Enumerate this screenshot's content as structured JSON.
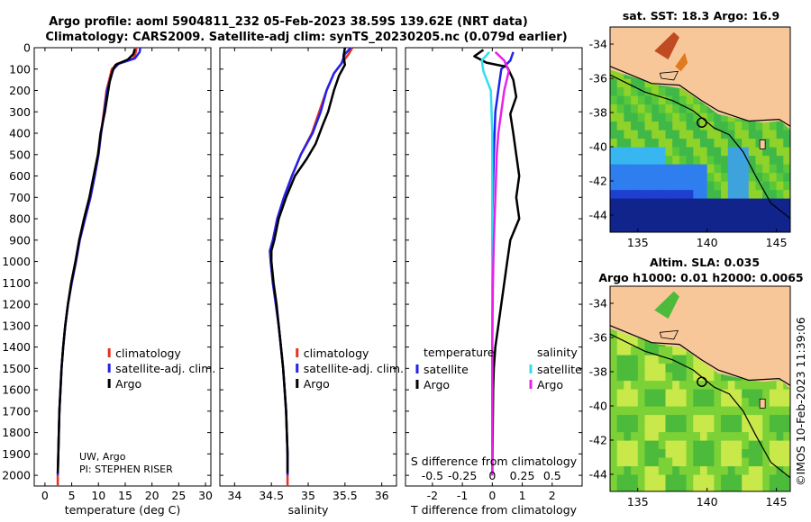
{
  "titles": {
    "line1": "Argo profile: aoml 5904811_232 05-Feb-2023 38.59S 139.62E (NRT data)",
    "line2": "Climatology: CARS2009. Satellite-adj clim: synTS_20230205.nc (0.079d earlier)"
  },
  "credit": {
    "line1": "UW, Argo",
    "line2": "PI: STEPHEN RISER"
  },
  "watermark": "©IMOS 10-Feb-2023 11:39:06",
  "colors": {
    "climatology": "#e8301e",
    "satellite_adj": "#2222ee",
    "argo": "#000000",
    "temp_argo": "#000000",
    "temp_satellite": "#33ddee",
    "sal_satellite": "#e822e8",
    "land": "#f7c79a",
    "ocean_mid": "#58c83a",
    "ocean_cold": "#1a3fd6",
    "ocean_warm": "#c04a22"
  },
  "chart_data": [
    {
      "type": "line",
      "id": "temperature-panel",
      "xlabel": "temperature (deg C)",
      "xlim": [
        -2,
        31
      ],
      "xticks": [
        0,
        5,
        10,
        15,
        20,
        25,
        30
      ],
      "ylim": [
        0,
        2050
      ],
      "yticks": [
        0,
        100,
        200,
        300,
        400,
        500,
        600,
        700,
        800,
        900,
        1000,
        1100,
        1200,
        1300,
        1400,
        1500,
        1600,
        1700,
        1800,
        1900,
        2000
      ],
      "ydirection": "down",
      "legend": [
        "climatology",
        "satellite-adj. clim.",
        "Argo"
      ],
      "legend_location": "lower-right",
      "series": [
        {
          "name": "climatology",
          "color": "#e8301e",
          "points": [
            [
              17.1,
              0
            ],
            [
              17,
              20
            ],
            [
              16.5,
              50
            ],
            [
              13.5,
              75
            ],
            [
              12.5,
              100
            ],
            [
              12,
              150
            ],
            [
              11.5,
              200
            ],
            [
              11,
              300
            ],
            [
              10.5,
              400
            ],
            [
              10,
              500
            ],
            [
              9.3,
              600
            ],
            [
              8.5,
              700
            ],
            [
              7.5,
              800
            ],
            [
              6.5,
              900
            ],
            [
              5.8,
              1000
            ],
            [
              5,
              1100
            ],
            [
              4.3,
              1200
            ],
            [
              3.8,
              1300
            ],
            [
              3.4,
              1400
            ],
            [
              3.1,
              1500
            ],
            [
              2.9,
              1600
            ],
            [
              2.7,
              1700
            ],
            [
              2.6,
              1800
            ],
            [
              2.5,
              1900
            ],
            [
              2.4,
              2000
            ],
            [
              2.4,
              2050
            ]
          ]
        },
        {
          "name": "satellite-adj. clim.",
          "color": "#2222ee",
          "points": [
            [
              17.8,
              0
            ],
            [
              17.7,
              20
            ],
            [
              16.8,
              50
            ],
            [
              13.8,
              75
            ],
            [
              12.8,
              100
            ],
            [
              12.2,
              150
            ],
            [
              11.6,
              200
            ],
            [
              11.1,
              300
            ],
            [
              10.5,
              400
            ],
            [
              10,
              500
            ],
            [
              9.3,
              600
            ],
            [
              8.5,
              700
            ],
            [
              7.5,
              800
            ],
            [
              6.5,
              900
            ],
            [
              5.8,
              1000
            ],
            [
              5,
              1100
            ],
            [
              4.3,
              1200
            ],
            [
              3.8,
              1300
            ],
            [
              3.4,
              1400
            ],
            [
              3.1,
              1500
            ],
            [
              2.9,
              1600
            ],
            [
              2.7,
              1700
            ],
            [
              2.6,
              1800
            ],
            [
              2.5,
              1900
            ],
            [
              2.4,
              2000
            ]
          ]
        },
        {
          "name": "Argo",
          "color": "#000000",
          "points": [
            [
              16.8,
              5
            ],
            [
              16.5,
              30
            ],
            [
              15.5,
              55
            ],
            [
              13.2,
              80
            ],
            [
              12.6,
              110
            ],
            [
              12.1,
              160
            ],
            [
              11.7,
              220
            ],
            [
              11.2,
              300
            ],
            [
              10.4,
              400
            ],
            [
              9.9,
              500
            ],
            [
              9.1,
              600
            ],
            [
              8.3,
              700
            ],
            [
              7.3,
              800
            ],
            [
              6.4,
              900
            ],
            [
              5.7,
              1000
            ],
            [
              4.9,
              1100
            ],
            [
              4.3,
              1200
            ],
            [
              3.8,
              1300
            ],
            [
              3.4,
              1400
            ],
            [
              3.1,
              1500
            ],
            [
              2.9,
              1600
            ],
            [
              2.7,
              1700
            ],
            [
              2.6,
              1800
            ],
            [
              2.5,
              1900
            ],
            [
              2.4,
              1990
            ]
          ]
        }
      ]
    },
    {
      "type": "line",
      "id": "salinity-panel",
      "xlabel": "salinity",
      "xlim": [
        33.8,
        36.2
      ],
      "xticks": [
        34,
        34.5,
        35,
        35.5,
        36
      ],
      "ylim": [
        0,
        2050
      ],
      "ydirection": "down",
      "legend": [
        "climatology",
        "satellite-adj. clim.",
        "Argo"
      ],
      "legend_location": "lower-right",
      "series": [
        {
          "name": "climatology",
          "color": "#e8301e",
          "points": [
            [
              35.6,
              0
            ],
            [
              35.55,
              30
            ],
            [
              35.45,
              75
            ],
            [
              35.35,
              120
            ],
            [
              35.25,
              200
            ],
            [
              35.15,
              300
            ],
            [
              35.05,
              400
            ],
            [
              34.9,
              500
            ],
            [
              34.78,
              600
            ],
            [
              34.67,
              700
            ],
            [
              34.58,
              800
            ],
            [
              34.52,
              900
            ],
            [
              34.48,
              950
            ],
            [
              34.49,
              1000
            ],
            [
              34.52,
              1100
            ],
            [
              34.56,
              1200
            ],
            [
              34.6,
              1300
            ],
            [
              34.63,
              1400
            ],
            [
              34.66,
              1500
            ],
            [
              34.68,
              1600
            ],
            [
              34.7,
              1700
            ],
            [
              34.71,
              1800
            ],
            [
              34.72,
              1900
            ],
            [
              34.72,
              2000
            ],
            [
              34.72,
              2050
            ]
          ]
        },
        {
          "name": "satellite-adj. clim.",
          "color": "#2222ee",
          "points": [
            [
              35.58,
              0
            ],
            [
              35.5,
              30
            ],
            [
              35.45,
              75
            ],
            [
              35.35,
              120
            ],
            [
              35.25,
              200
            ],
            [
              35.17,
              300
            ],
            [
              35.06,
              400
            ],
            [
              34.9,
              500
            ],
            [
              34.78,
              600
            ],
            [
              34.67,
              700
            ],
            [
              34.58,
              800
            ],
            [
              34.52,
              900
            ],
            [
              34.48,
              950
            ],
            [
              34.49,
              1000
            ],
            [
              34.52,
              1100
            ],
            [
              34.56,
              1200
            ],
            [
              34.6,
              1300
            ],
            [
              34.63,
              1400
            ],
            [
              34.66,
              1500
            ],
            [
              34.68,
              1600
            ],
            [
              34.7,
              1700
            ],
            [
              34.71,
              1800
            ],
            [
              34.72,
              1900
            ],
            [
              34.72,
              2000
            ]
          ]
        },
        {
          "name": "Argo",
          "color": "#000000",
          "points": [
            [
              35.5,
              0
            ],
            [
              35.48,
              40
            ],
            [
              35.5,
              80
            ],
            [
              35.42,
              130
            ],
            [
              35.35,
              200
            ],
            [
              35.27,
              300
            ],
            [
              35.2,
              360
            ],
            [
              35.1,
              450
            ],
            [
              34.98,
              520
            ],
            [
              34.82,
              600
            ],
            [
              34.7,
              700
            ],
            [
              34.6,
              800
            ],
            [
              34.54,
              900
            ],
            [
              34.5,
              950
            ],
            [
              34.5,
              1000
            ],
            [
              34.53,
              1100
            ],
            [
              34.57,
              1200
            ],
            [
              34.6,
              1300
            ],
            [
              34.63,
              1400
            ],
            [
              34.66,
              1500
            ],
            [
              34.68,
              1600
            ],
            [
              34.7,
              1700
            ],
            [
              34.71,
              1800
            ],
            [
              34.72,
              1900
            ],
            [
              34.72,
              1990
            ]
          ]
        }
      ]
    },
    {
      "type": "line",
      "id": "difference-panel",
      "xlabel": "T difference from climatology",
      "xlabel_top": "S difference from climatology",
      "xlim": [
        -2.9,
        3.0
      ],
      "xticks": [
        -2,
        -1,
        0,
        1,
        2
      ],
      "x2ticks": [
        -0.5,
        -0.25,
        0,
        0.25,
        0.5
      ],
      "ylim": [
        0,
        2050
      ],
      "ydirection": "down",
      "legend_temperature_title": "temperature",
      "legend_salinity_title": "salinity",
      "legend_temperature": [
        "satellite",
        "Argo"
      ],
      "legend_salinity": [
        "satellite",
        "Argo"
      ],
      "series": [
        {
          "name": "temperature satellite",
          "color": "#2222ee",
          "points": [
            [
              0.7,
              20
            ],
            [
              0.6,
              60
            ],
            [
              0.3,
              100
            ],
            [
              0.2,
              200
            ],
            [
              0.1,
              300
            ],
            [
              0.05,
              500
            ],
            [
              0,
              800
            ],
            [
              0,
              1200
            ],
            [
              0,
              2000
            ]
          ]
        },
        {
          "name": "temperature Argo",
          "color": "#000000",
          "points": [
            [
              -0.3,
              10
            ],
            [
              -0.6,
              40
            ],
            [
              -0.2,
              70
            ],
            [
              0.5,
              90
            ],
            [
              0.7,
              150
            ],
            [
              0.8,
              230
            ],
            [
              0.6,
              310
            ],
            [
              0.7,
              400
            ],
            [
              0.8,
              500
            ],
            [
              0.9,
              600
            ],
            [
              0.8,
              700
            ],
            [
              0.9,
              800
            ],
            [
              0.6,
              900
            ],
            [
              0.5,
              1000
            ],
            [
              0.4,
              1100
            ],
            [
              0.3,
              1200
            ],
            [
              0.2,
              1300
            ],
            [
              0.1,
              1400
            ],
            [
              0.05,
              1500
            ],
            [
              0.03,
              1600
            ],
            [
              0,
              2000
            ]
          ]
        },
        {
          "name": "salinity satellite",
          "color": "#33ddee",
          "points": [
            [
              -0.1,
              20
            ],
            [
              -0.35,
              60
            ],
            [
              -0.3,
              110
            ],
            [
              -0.05,
              200
            ],
            [
              0,
              400
            ],
            [
              0,
              800
            ],
            [
              0,
              2000
            ]
          ]
        },
        {
          "name": "salinity Argo",
          "color": "#e822e8",
          "points": [
            [
              0.1,
              20
            ],
            [
              0.4,
              60
            ],
            [
              0.55,
              110
            ],
            [
              0.4,
              200
            ],
            [
              0.3,
              300
            ],
            [
              0.2,
              400
            ],
            [
              0.15,
              500
            ],
            [
              0.1,
              700
            ],
            [
              0.05,
              900
            ],
            [
              0.02,
              1100
            ],
            [
              0,
              1400
            ],
            [
              0,
              2000
            ]
          ]
        }
      ]
    },
    {
      "type": "heatmap",
      "id": "sst-map",
      "title": "sat. SST: 18.3 Argo: 16.9",
      "xlim": [
        133,
        146
      ],
      "ylim": [
        -45,
        -33
      ],
      "xticks": [
        135,
        140,
        145
      ],
      "yticks": [
        -34,
        -36,
        -38,
        -40,
        -42,
        -44
      ],
      "marker": [
        139.62,
        -38.59
      ]
    },
    {
      "type": "heatmap",
      "id": "sla-map",
      "title_line1": "Altim. SLA: 0.035",
      "title_line2": "Argo h1000: 0.01 h2000: 0.0065",
      "xlim": [
        133,
        146
      ],
      "ylim": [
        -45,
        -33
      ],
      "xticks": [
        135,
        140,
        145
      ],
      "yticks": [
        -34,
        -36,
        -38,
        -40,
        -42,
        -44
      ],
      "marker": [
        139.62,
        -38.59
      ]
    }
  ]
}
